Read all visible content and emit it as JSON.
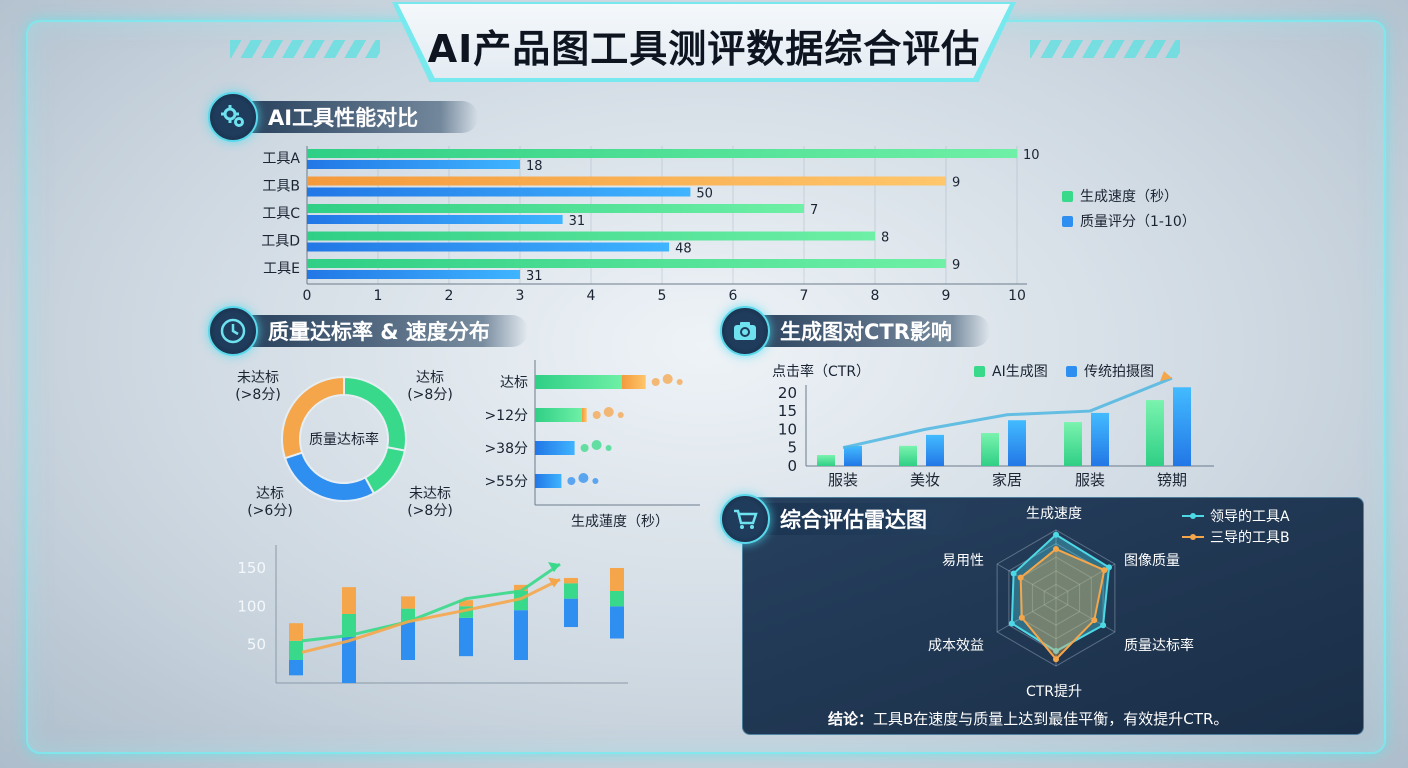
{
  "title": "AI产品图工具测评数据综合评估",
  "sections": {
    "perf": "AI工具性能对比",
    "quality": "质量达标率 & 速度分布",
    "ctr": "生成图对CTR影响",
    "radar": "综合评估雷达图"
  },
  "colors": {
    "green": "#38d98a",
    "blue": "#2f8ff0",
    "orange": "#f5a64a",
    "cyan": "#4dd8e6"
  },
  "chart_data": [
    {
      "id": "perf",
      "type": "bar",
      "orientation": "horizontal",
      "categories": [
        "工具A",
        "工具B",
        "工具C",
        "工具D",
        "工具E"
      ],
      "series": [
        {
          "name": "生成速度（秒）",
          "values": [
            10,
            9,
            7,
            8,
            9
          ],
          "colors": [
            "#38d98a",
            "#f5a64a",
            "#38d98a",
            "#38d98a",
            "#38d98a"
          ]
        },
        {
          "name": "质量评分（1-10）",
          "values": [
            18,
            50,
            31,
            48,
            31
          ],
          "bar_lengths": [
            3,
            5.4,
            3.6,
            5.1,
            3
          ]
        }
      ],
      "xticks": [
        0,
        1,
        2,
        3,
        4,
        5,
        6,
        7,
        8,
        9,
        10
      ],
      "xlim": [
        0,
        10
      ],
      "legend": "right"
    },
    {
      "id": "donut",
      "type": "pie",
      "center_label": "质量达标率",
      "slices": [
        {
          "label": "达标\n(>8分)",
          "value": 28,
          "color": "#38d98a"
        },
        {
          "label": "未达标\n(>8分)",
          "value": 14,
          "color": "#38d98a"
        },
        {
          "label": "达标\n(>6分)",
          "value": 28,
          "color": "#2f8ff0"
        },
        {
          "label": "未达标\n(>8分)",
          "value": 30,
          "color": "#f5a64a"
        }
      ],
      "outer_labels": [
        "未达标\n(>8分)",
        "达标\n(>8分)",
        "达标\n(>6分)",
        "未达标\n(>8分)"
      ]
    },
    {
      "id": "speed",
      "type": "bar",
      "orientation": "horizontal",
      "categories": [
        "达标",
        ">12分",
        ">38分",
        ">55分"
      ],
      "series": [
        {
          "name": "green",
          "values": [
            85,
            46,
            0,
            0
          ]
        },
        {
          "name": "blue",
          "values": [
            0,
            0,
            33,
            22
          ]
        },
        {
          "name": "orange",
          "values": [
            20,
            4,
            0,
            0
          ]
        }
      ],
      "xlabel": "生成蓮度（秒）"
    },
    {
      "id": "stacked",
      "type": "bar",
      "yticks": [
        50,
        100,
        150
      ],
      "ylim": [
        0,
        180
      ],
      "bars": [
        {
          "low": 10,
          "seg1": 30,
          "seg2": 55,
          "top": 78
        },
        {
          "low": 0,
          "seg1": 60,
          "seg2": 90,
          "top": 125
        },
        {
          "low": 30,
          "seg1": 80,
          "seg2": 97,
          "top": 113
        },
        {
          "low": 35,
          "seg1": 85,
          "seg2": 100,
          "top": 108
        },
        {
          "low": 30,
          "seg1": 95,
          "seg2": 120,
          "top": 128
        },
        {
          "low": 73,
          "seg1": 110,
          "seg2": 130,
          "top": 137
        },
        {
          "low": 58,
          "seg1": 100,
          "seg2": 120,
          "top": 150
        }
      ],
      "lines": [
        {
          "color": "#38d98a",
          "values": [
            55,
            62,
            80,
            110,
            120,
            155
          ]
        },
        {
          "color": "#f5a64a",
          "values": [
            40,
            55,
            80,
            95,
            110,
            135
          ]
        }
      ]
    },
    {
      "id": "ctr",
      "type": "bar",
      "ylabel": "点击率（CTR）",
      "categories": [
        "服装",
        "美妆",
        "家居",
        "服装",
        "镑期"
      ],
      "series": [
        {
          "name": "AI生成图",
          "values": [
            3,
            5.5,
            9,
            12,
            18
          ]
        },
        {
          "name": "传统拍摄图",
          "values": [
            5.5,
            8.5,
            12.5,
            14.5,
            21.5
          ]
        }
      ],
      "yticks": [
        0,
        5,
        10,
        15,
        20
      ],
      "ylim": [
        0,
        22
      ],
      "trend": [
        5,
        10,
        14,
        15,
        24
      ],
      "legend": "top"
    },
    {
      "id": "radar",
      "type": "radar",
      "axes": [
        "生成速度",
        "图像质量",
        "质量达标率",
        "CTR提升",
        "成本效益",
        "易用性"
      ],
      "series": [
        {
          "name": "领导的工具A",
          "values": [
            0.93,
            0.9,
            0.8,
            0.78,
            0.75,
            0.72
          ],
          "color": "#4dd8e6"
        },
        {
          "name": "三导的工具B",
          "values": [
            0.72,
            0.82,
            0.65,
            0.9,
            0.58,
            0.6
          ],
          "color": "#f5a64a"
        }
      ],
      "rings": 5,
      "legend": "top-right"
    }
  ],
  "conclusion": {
    "label": "结论：",
    "text": "工具B在速度与质量上达到最佳平衡，有效提升CTR。"
  }
}
